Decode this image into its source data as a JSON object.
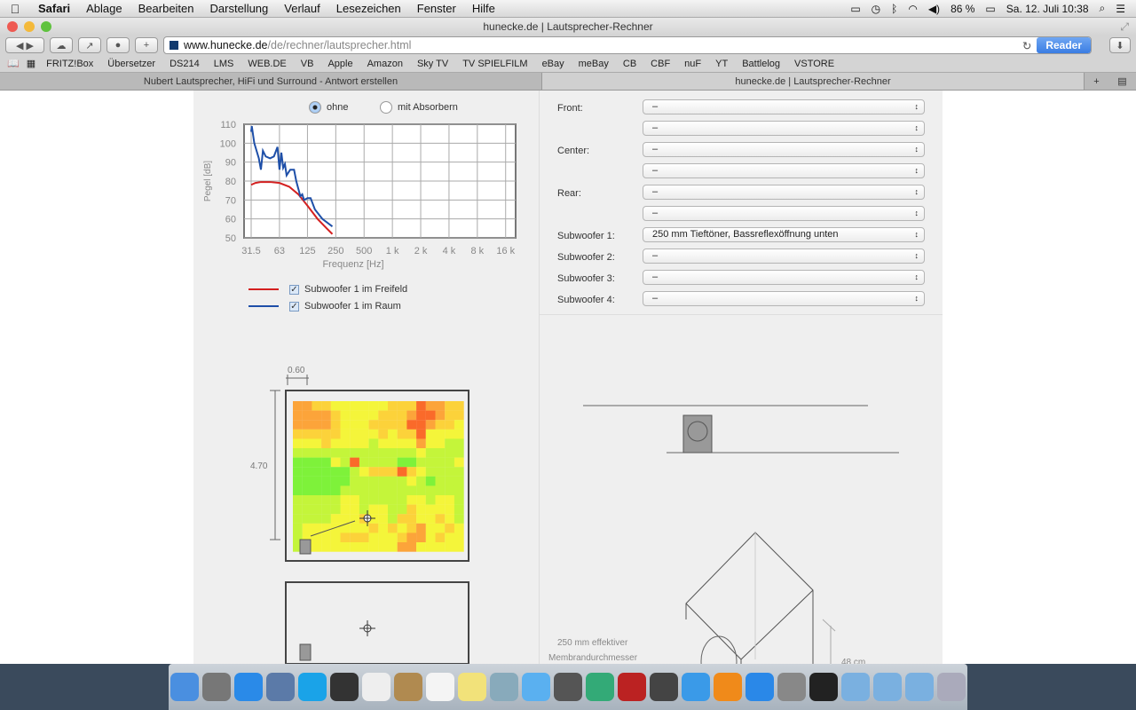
{
  "menubar": {
    "app": "Safari",
    "items": [
      "Ablage",
      "Bearbeiten",
      "Darstellung",
      "Verlauf",
      "Lesezeichen",
      "Fenster",
      "Hilfe"
    ],
    "battery": "86 %",
    "datetime": "Sa. 12. Juli  10:38"
  },
  "window": {
    "title": "hunecke.de | Lautsprecher-Rechner",
    "url_host": "www.hunecke.de",
    "url_path": "/de/rechner/lautsprecher.html",
    "reader": "Reader"
  },
  "bookmarks": [
    "FRITZ!Box",
    "Übersetzer",
    "DS214",
    "LMS",
    "WEB.DE",
    "VB",
    "Apple",
    "Amazon",
    "Sky TV",
    "TV SPIELFILM",
    "eBay",
    "meBay",
    "CB",
    "CBF",
    "nuF",
    "YT",
    "Battlelog",
    "VSTORE"
  ],
  "tabs": [
    {
      "label": "Nubert Lautsprecher, HiFi und Surround - Antwort erstellen",
      "active": false
    },
    {
      "label": "hunecke.de | Lautsprecher-Rechner",
      "active": true
    }
  ],
  "options": {
    "ohne": "ohne",
    "mit": "mit Absorbern",
    "selected": "ohne"
  },
  "legend": [
    {
      "label": "Subwoofer 1 im Freifeld",
      "color": "#d42020",
      "checked": true
    },
    {
      "label": "Subwoofer 1 im Raum",
      "color": "#1e4fa8",
      "checked": true
    }
  ],
  "chart_data": {
    "type": "line",
    "xlabel": "Frequenz [Hz]",
    "ylabel": "Pegel [dB]",
    "xscale": "log2",
    "xlim": [
      31.5,
      16000
    ],
    "ylim": [
      50,
      110
    ],
    "xticks": [
      "31.5",
      "63",
      "125",
      "250",
      "500",
      "1 k",
      "2 k",
      "4 k",
      "8 k",
      "16 k"
    ],
    "xtick_values": [
      31.5,
      63,
      125,
      250,
      500,
      1000,
      2000,
      4000,
      8000,
      16000
    ],
    "yticks": [
      "110",
      "100",
      "90",
      "80",
      "70",
      "60",
      "50"
    ],
    "grid": true,
    "series": [
      {
        "name": "Subwoofer 1 im Freifeld",
        "color": "#d42020",
        "x": [
          31.5,
          35,
          40,
          50,
          63,
          80,
          100,
          125,
          160,
          200,
          230
        ],
        "y": [
          78,
          79,
          79.5,
          79.5,
          79,
          77,
          73,
          67,
          60,
          55,
          52
        ]
      },
      {
        "name": "Subwoofer 1 im Raum",
        "color": "#1e4fa8",
        "x": [
          31.5,
          32,
          34,
          38,
          40,
          42,
          45,
          50,
          55,
          60,
          63,
          66,
          69,
          72,
          75,
          82,
          90,
          95,
          105,
          110,
          115,
          125,
          135,
          150,
          180,
          230
        ],
        "y": [
          106,
          109,
          100,
          92,
          86,
          96,
          93,
          92,
          93,
          98,
          86,
          95,
          87,
          89,
          83,
          86,
          86,
          80,
          72,
          73,
          70,
          71,
          71,
          65,
          60,
          56
        ]
      }
    ]
  },
  "room": {
    "width_label": "0.60",
    "depth_label": "4.70",
    "heatmap": [
      "443322222233354433",
      "444432222333455433",
      "444432223333554332",
      "333332222323352222",
      "222322221222242211",
      "111111111111121111",
      "000021511110011112",
      "000000123335321111",
      "000000111111210111",
      "000001111111111111",
      "111112211111221221",
      "111112212211322221",
      "111122232213322321",
      "122222223232342232",
      "122223332223442322",
      "122222222224422222"
    ],
    "palette": [
      "#7ef23a",
      "#c4f53a",
      "#f4f53a",
      "#fcd23a",
      "#fca43a",
      "#fa6a2a"
    ]
  },
  "form": {
    "rows": [
      {
        "label": "Front:",
        "values": [
          "–",
          "–"
        ]
      },
      {
        "label": "Center:",
        "values": [
          "–",
          "–"
        ]
      },
      {
        "label": "Rear:",
        "values": [
          "–",
          "–"
        ]
      },
      {
        "label": "Subwoofer 1:",
        "values": [
          "250 mm Tieftöner, Bassreflexöffnung unten"
        ]
      },
      {
        "label": "Subwoofer 2:",
        "values": [
          "–"
        ]
      },
      {
        "label": "Subwoofer 3:",
        "values": [
          "–"
        ]
      },
      {
        "label": "Subwoofer 4:",
        "values": [
          "–"
        ]
      }
    ]
  },
  "drawing": {
    "membrane_label_1": "250 mm effektiver",
    "membrane_label_2": "Membrandurchmesser",
    "height_label": "48 cm"
  },
  "dock": [
    {
      "name": "finder",
      "c": "#4a8fe0"
    },
    {
      "name": "launchpad",
      "c": "#777"
    },
    {
      "name": "safari",
      "c": "#2a8ae8"
    },
    {
      "name": "preview",
      "c": "#5b7aa8"
    },
    {
      "name": "skype",
      "c": "#1aa3e8"
    },
    {
      "name": "steam",
      "c": "#333"
    },
    {
      "name": "document",
      "c": "#eee"
    },
    {
      "name": "contacts",
      "c": "#b08a50"
    },
    {
      "name": "calendar",
      "c": "#f4f4f4"
    },
    {
      "name": "notes",
      "c": "#f2e27a"
    },
    {
      "name": "preview-2",
      "c": "#8ab"
    },
    {
      "name": "messages",
      "c": "#5ab0f0"
    },
    {
      "name": "facetime",
      "c": "#555"
    },
    {
      "name": "iphoto",
      "c": "#3a7"
    },
    {
      "name": "photo-booth",
      "c": "#b22"
    },
    {
      "name": "imovie",
      "c": "#444"
    },
    {
      "name": "itunes",
      "c": "#3a9ae8"
    },
    {
      "name": "ibooks",
      "c": "#f08a1a"
    },
    {
      "name": "app-store",
      "c": "#2a88e8"
    },
    {
      "name": "system-preferences",
      "c": "#888"
    },
    {
      "name": "activity-monitor",
      "c": "#222"
    },
    {
      "name": "applications-folder",
      "c": "#7ab0e0"
    },
    {
      "name": "documents-folder",
      "c": "#7ab0e0"
    },
    {
      "name": "downloads-folder",
      "c": "#7ab0e0"
    },
    {
      "name": "trash",
      "c": "#aab"
    }
  ]
}
